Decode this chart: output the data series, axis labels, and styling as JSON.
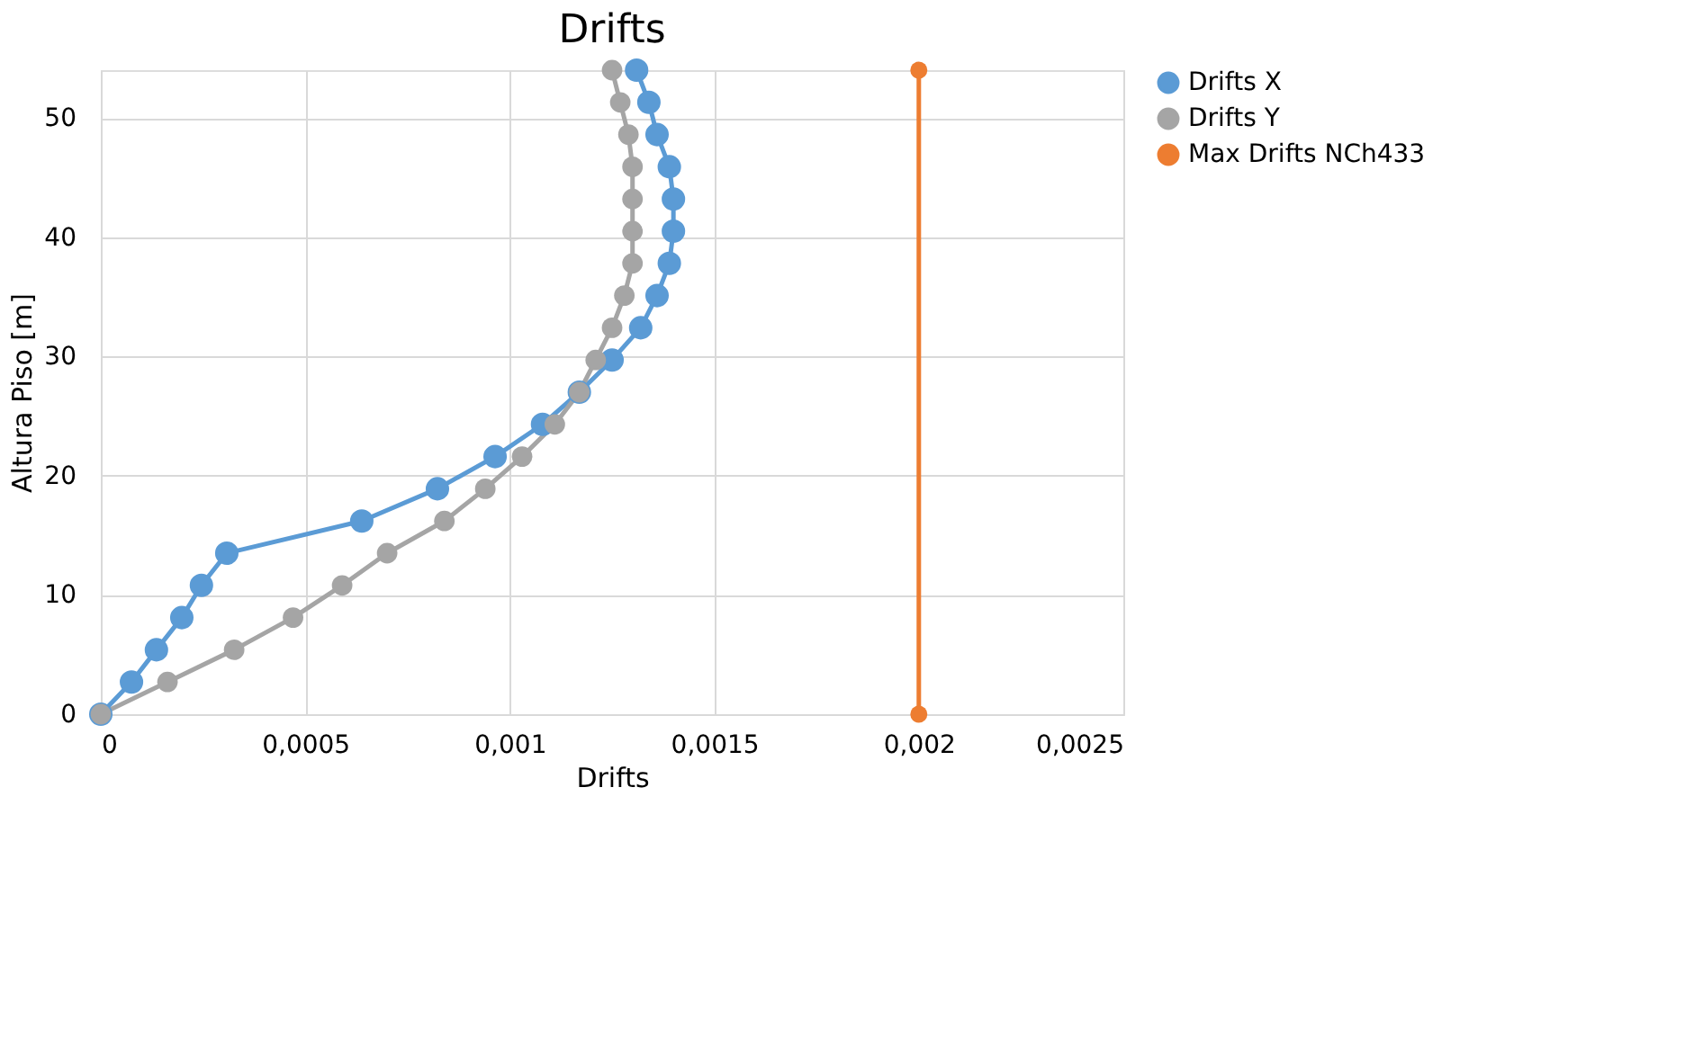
{
  "chart_data": {
    "type": "line",
    "title": "Drifts",
    "xlabel": "Drifts",
    "ylabel": "Altura Piso [m]",
    "xlim": [
      0,
      0.0025
    ],
    "xticks": [
      0,
      {
        "value": 0.0005,
        "label": "0,0005"
      },
      {
        "value": 0.001,
        "label": "0,001"
      },
      {
        "value": 0.0015,
        "label": "0,0015"
      },
      {
        "value": 0.002,
        "label": "0,002"
      },
      {
        "value": 0.0025,
        "label": "0,0025"
      }
    ],
    "ylim": [
      0,
      54
    ],
    "yticks": [
      0,
      10,
      20,
      30,
      40,
      50
    ],
    "grid": true,
    "legend": "right",
    "marker": "circle",
    "line_style": "solid",
    "series": [
      {
        "name": "Drifts X",
        "color": "#5b9bd5",
        "x": [
          0,
          7.5e-05,
          0.000136,
          0.000198,
          0.000246,
          0.000308,
          0.000638,
          0.000823,
          0.000964,
          0.00108,
          0.00117,
          0.00125,
          0.00132,
          0.00136,
          0.00139,
          0.0014,
          0.0014,
          0.00139,
          0.00136,
          0.00134,
          0.00131
        ],
        "values": [
          0,
          2.7,
          5.4,
          8.1,
          10.8,
          13.5,
          16.2,
          18.9,
          21.6,
          24.3,
          27,
          29.7,
          32.4,
          35.1,
          37.8,
          40.5,
          43.2,
          45.9,
          48.6,
          51.3,
          54
        ]
      },
      {
        "name": "Drifts Y",
        "color": "#a5a5a5",
        "x": [
          0,
          0.000163,
          0.000326,
          0.00047,
          0.00059,
          0.0007,
          0.00084,
          0.00094,
          0.00103,
          0.00111,
          0.00117,
          0.00121,
          0.00125,
          0.00128,
          0.0013,
          0.0013,
          0.0013,
          0.0013,
          0.00129,
          0.00127,
          0.00125
        ],
        "values": [
          0,
          2.7,
          5.4,
          8.1,
          10.8,
          13.5,
          16.2,
          18.9,
          21.6,
          24.3,
          27,
          29.7,
          32.4,
          35.1,
          37.8,
          40.5,
          43.2,
          45.9,
          48.6,
          51.3,
          54
        ]
      },
      {
        "name": "Max Drifts NCh433",
        "color": "#ed7d31",
        "x": [
          0.002,
          0.002
        ],
        "values": [
          0,
          54
        ]
      }
    ]
  }
}
